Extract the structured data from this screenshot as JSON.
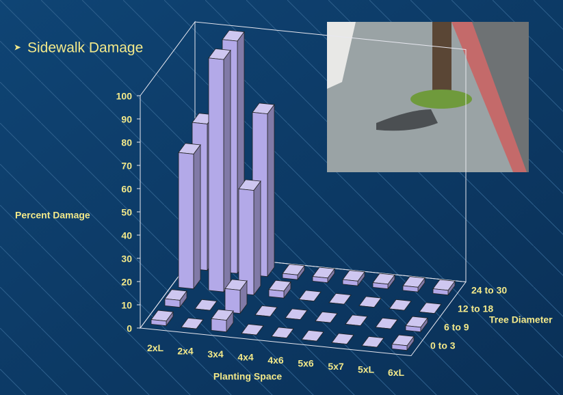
{
  "chart_data": {
    "type": "bar3d",
    "title": "Sidewalk Damage",
    "y_label": "Percent Damage",
    "x_label": "Planting Space",
    "z_label": "Tree Diameter",
    "categories": [
      "2xL",
      "2x4",
      "3x4",
      "4x4",
      "4x6",
      "5x6",
      "5x7",
      "5xL",
      "6xL"
    ],
    "series": [
      {
        "name": "0 to 3",
        "color": "#b3a9e8",
        "values": [
          2,
          0,
          5,
          0,
          0,
          0,
          0,
          0,
          2
        ]
      },
      {
        "name": "6 to 9",
        "color": "#b3a9e8",
        "values": [
          3,
          0,
          10,
          0,
          0,
          0,
          0,
          0,
          2
        ]
      },
      {
        "name": "12 to 18",
        "color": "#b3a9e8",
        "values": [
          58,
          100,
          45,
          3,
          0,
          0,
          0,
          0,
          0
        ]
      },
      {
        "name": "24 to 30",
        "color": "#b3a9e8",
        "values": [
          63,
          100,
          70,
          2,
          2,
          2,
          2,
          2,
          2
        ]
      }
    ],
    "ylim": [
      0,
      100
    ],
    "yticks": [
      0,
      10,
      20,
      30,
      40,
      50,
      60,
      70,
      80,
      90,
      100
    ]
  }
}
